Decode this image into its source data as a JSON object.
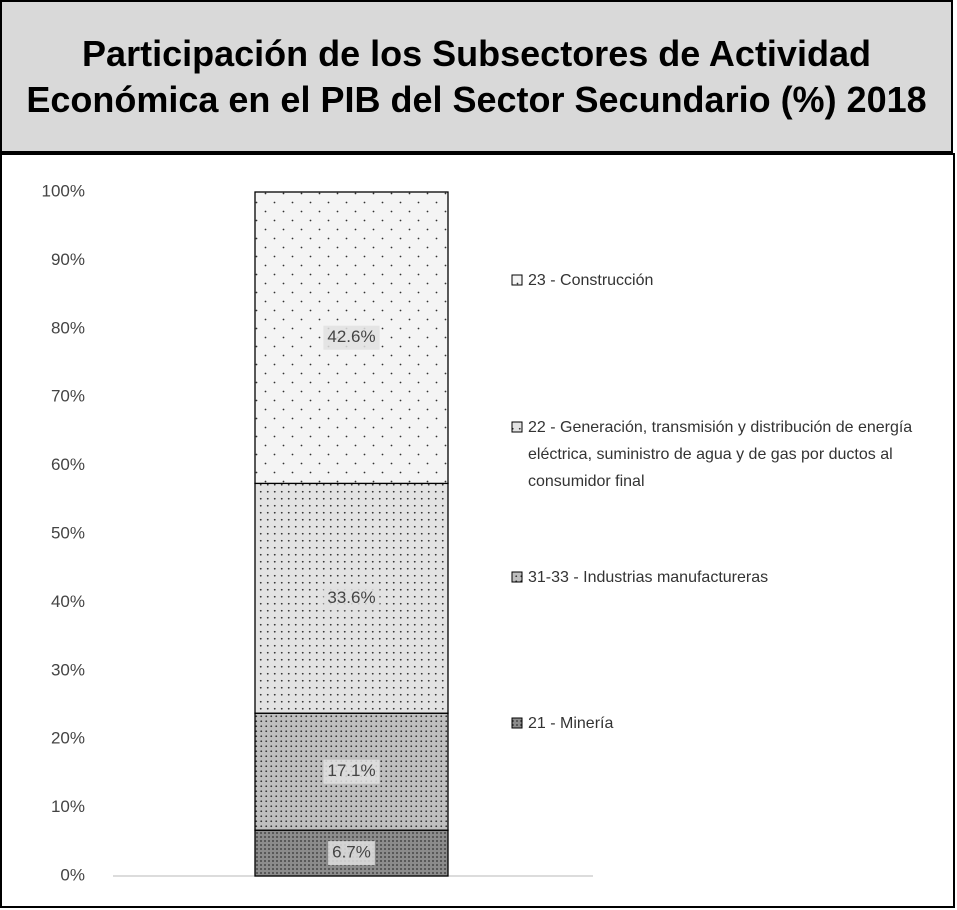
{
  "chart_data": {
    "type": "stacked_bar",
    "title": "Participación de los Subsectores de Actividad Económica en el PIB del Sector Secundario (%) 2018",
    "categories": [
      null
    ],
    "series": [
      {
        "name": "21 - Minería",
        "color": "#8c8c8c",
        "values": [
          6.7
        ],
        "value_labels": [
          "6.7%"
        ]
      },
      {
        "name": "31-33 - Industrias manufactureras",
        "color": "#bfbfbf",
        "values": [
          17.1
        ],
        "value_labels": [
          "17.1%"
        ]
      },
      {
        "name": "22 - Generación, transmisión y distribución de energía eléctrica, suministro de agua y de gas por ductos al consumidor final",
        "color": "#e3e3e3",
        "values": [
          33.6
        ],
        "value_labels": [
          "33.6%"
        ]
      },
      {
        "name": "23 - Construcción",
        "color": "#f4f4f4",
        "values": [
          42.6
        ],
        "value_labels": [
          "42.6%"
        ]
      }
    ],
    "ylim": [
      0,
      100
    ],
    "yticks": [
      {
        "value": 0,
        "label": "0%"
      },
      {
        "value": 10,
        "label": "10%"
      },
      {
        "value": 20,
        "label": "20%"
      },
      {
        "value": 30,
        "label": "30%"
      },
      {
        "value": 40,
        "label": "40%"
      },
      {
        "value": 50,
        "label": "50%"
      },
      {
        "value": 60,
        "label": "60%"
      },
      {
        "value": 70,
        "label": "70%"
      },
      {
        "value": 80,
        "label": "80%"
      },
      {
        "value": 90,
        "label": "90%"
      },
      {
        "value": 100,
        "label": "100%"
      }
    ],
    "legend": "right"
  }
}
